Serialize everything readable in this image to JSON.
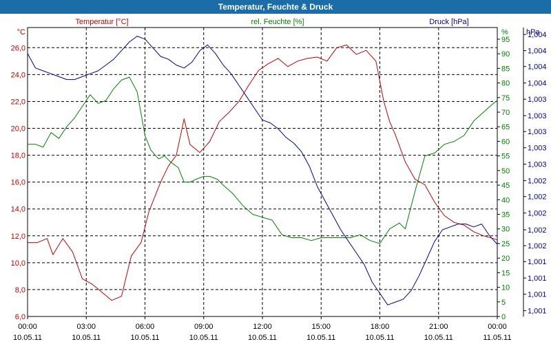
{
  "chart_data": {
    "type": "line",
    "title": "Temperatur, Feuchte & Druck",
    "x_ticks": [
      {
        "time": "00:00",
        "date": "10.05.11"
      },
      {
        "time": "03:00",
        "date": "10.05.11"
      },
      {
        "time": "06:00",
        "date": "10.05.11"
      },
      {
        "time": "09:00",
        "date": "10.05.11"
      },
      {
        "time": "12:00",
        "date": "10.05.11"
      },
      {
        "time": "15:00",
        "date": "10.05.11"
      },
      {
        "time": "18:00",
        "date": "10.05.11"
      },
      {
        "time": "21:00",
        "date": "10.05.11"
      },
      {
        "time": "00:00",
        "date": "11.05.11"
      }
    ],
    "x_range_hours": [
      0,
      24
    ],
    "grid": true,
    "axes": {
      "temperature": {
        "label": "Temperatur [°C]",
        "unit": "°C",
        "range": [
          6,
          27.5
        ],
        "ticks": [
          "6,0",
          "8,0",
          "10,0",
          "12,0",
          "14,0",
          "16,0",
          "18,0",
          "20,0",
          "22,0",
          "24,0",
          "26,0"
        ],
        "tick_values": [
          6,
          8,
          10,
          12,
          14,
          16,
          18,
          20,
          22,
          24,
          26
        ],
        "color": "#c00000"
      },
      "humidity": {
        "label": "rel. Feuchte [%]",
        "unit": "%",
        "range": [
          0,
          99
        ],
        "ticks": [
          "0",
          "5",
          "10",
          "15",
          "20",
          "25",
          "30",
          "35",
          "40",
          "45",
          "50",
          "55",
          "60",
          "65",
          "70",
          "75",
          "80",
          "85",
          "90",
          "95"
        ],
        "tick_values": [
          0,
          5,
          10,
          15,
          20,
          25,
          30,
          35,
          40,
          45,
          50,
          55,
          60,
          65,
          70,
          75,
          80,
          85,
          90,
          95
        ],
        "color": "#008000"
      },
      "pressure": {
        "label": "Druck [hPa]",
        "unit": "hPa",
        "range": [
          0,
          1
        ],
        "ticks": [
          "1,001",
          "1,001",
          "1,001",
          "1,001",
          "1,002",
          "1,002",
          "1,002",
          "1,002",
          "1,002",
          "1,003",
          "1,003",
          "1,003",
          "1,003",
          "1,003",
          "1,004",
          "1,004",
          "1,004",
          "1,004"
        ],
        "tick_values": [
          0.02,
          0.077,
          0.133,
          0.19,
          0.245,
          0.3,
          0.358,
          0.415,
          0.47,
          0.527,
          0.584,
          0.64,
          0.695,
          0.752,
          0.808,
          0.865,
          0.92,
          0.976
        ],
        "note": "pressure tick values are relative positions within the axis range because the printed labels are rounded",
        "color": "#00008b"
      }
    },
    "series": [
      {
        "name": "Temperatur [°C]",
        "axis": "temperature",
        "color": "#c00000",
        "x": [
          0,
          0.5,
          1,
          1.3,
          1.8,
          2.3,
          2.8,
          3.3,
          3.8,
          4.3,
          4.8,
          5.3,
          5.8,
          6.2,
          6.8,
          7.2,
          7.6,
          8.0,
          8.3,
          8.8,
          9.3,
          9.8,
          10.3,
          10.8,
          11.3,
          11.8,
          12.3,
          12.8,
          13.3,
          13.8,
          14.3,
          14.8,
          15.3,
          15.8,
          16.3,
          16.8,
          17.3,
          17.8,
          18.2,
          18.5,
          18.8,
          19.3,
          19.8,
          20.3,
          20.8,
          21.3,
          21.8,
          22.3,
          22.8,
          23.3,
          23.8,
          24
        ],
        "y": [
          11.5,
          11.5,
          11.8,
          10.6,
          11.8,
          10.8,
          8.8,
          8.4,
          7.8,
          7.2,
          7.5,
          10.5,
          11.5,
          13.8,
          16.0,
          17.2,
          18.0,
          20.7,
          18.8,
          18.2,
          19.0,
          20.5,
          21.2,
          22.0,
          23.2,
          24.3,
          24.8,
          25.2,
          24.6,
          25.0,
          25.2,
          25.3,
          25.0,
          26.0,
          26.2,
          25.5,
          25.8,
          25.0,
          22.0,
          20.5,
          19.5,
          17.5,
          16.2,
          15.8,
          14.5,
          13.5,
          13.0,
          12.8,
          12.3,
          12.0,
          11.8,
          11.7
        ]
      },
      {
        "name": "rel. Feuchte [%]",
        "axis": "humidity",
        "color": "#008000",
        "x": [
          0,
          0.4,
          0.8,
          1.2,
          1.6,
          2.0,
          2.4,
          2.8,
          3.2,
          3.6,
          4.0,
          4.4,
          4.8,
          5.2,
          5.6,
          6.0,
          6.3,
          6.7,
          7.0,
          7.3,
          7.7,
          8.0,
          8.3,
          8.6,
          9.0,
          9.3,
          9.7,
          10.0,
          10.5,
          11.0,
          11.5,
          12.0,
          12.5,
          13.0,
          13.5,
          14.0,
          14.5,
          15.0,
          15.5,
          16.0,
          16.5,
          17.0,
          17.5,
          18.0,
          18.5,
          19.0,
          19.3,
          19.8,
          20.3,
          20.8,
          21.3,
          21.8,
          22.3,
          22.8,
          23.3,
          23.8,
          24
        ],
        "y": [
          59,
          59,
          58,
          63,
          61,
          65,
          68,
          72,
          76,
          73,
          74,
          78,
          81,
          82,
          77,
          62,
          57,
          54,
          55,
          53,
          51,
          46,
          46,
          47,
          48,
          48,
          47,
          45,
          42,
          38,
          35,
          34,
          33,
          28,
          27,
          27,
          26,
          27,
          27,
          27,
          27,
          28,
          26,
          25,
          30,
          32,
          30,
          43,
          55,
          56,
          59,
          60,
          62,
          67,
          70,
          73,
          74
        ]
      },
      {
        "name": "Druck [hPa]",
        "axis": "pressure",
        "color": "#00008b",
        "x": [
          0,
          0.4,
          0.8,
          1.2,
          1.6,
          2.0,
          2.4,
          2.8,
          3.2,
          3.6,
          4.0,
          4.4,
          4.8,
          5.2,
          5.6,
          6.0,
          6.4,
          6.8,
          7.2,
          7.6,
          8.0,
          8.4,
          8.8,
          9.2,
          9.6,
          10.0,
          10.4,
          10.8,
          11.2,
          11.6,
          12.0,
          12.4,
          12.8,
          13.2,
          13.6,
          14.0,
          14.4,
          14.8,
          15.2,
          15.6,
          16.0,
          16.4,
          16.8,
          17.2,
          17.6,
          18.0,
          18.4,
          18.8,
          19.2,
          19.6,
          20.0,
          20.4,
          20.8,
          21.2,
          21.6,
          22.0,
          22.4,
          22.8,
          23.2,
          23.6,
          24
        ],
        "y": [
          0.91,
          0.86,
          0.85,
          0.84,
          0.83,
          0.82,
          0.82,
          0.83,
          0.84,
          0.85,
          0.87,
          0.89,
          0.92,
          0.95,
          0.97,
          0.96,
          0.93,
          0.9,
          0.89,
          0.87,
          0.86,
          0.88,
          0.92,
          0.94,
          0.91,
          0.87,
          0.84,
          0.8,
          0.76,
          0.72,
          0.68,
          0.67,
          0.65,
          0.62,
          0.6,
          0.57,
          0.52,
          0.45,
          0.4,
          0.35,
          0.3,
          0.26,
          0.22,
          0.18,
          0.12,
          0.08,
          0.04,
          0.05,
          0.06,
          0.09,
          0.14,
          0.2,
          0.26,
          0.3,
          0.31,
          0.32,
          0.32,
          0.31,
          0.32,
          0.28,
          0.25
        ]
      }
    ]
  }
}
